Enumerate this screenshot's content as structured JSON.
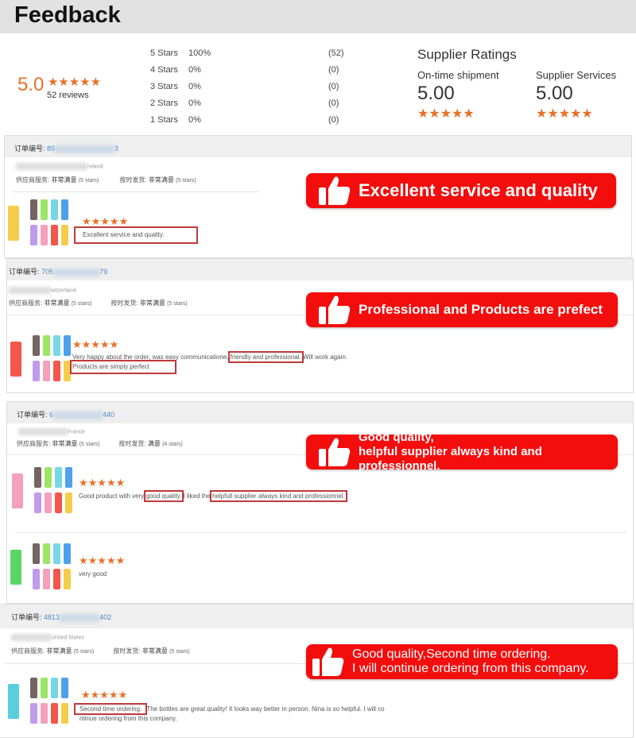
{
  "header": {
    "title": "Feedback"
  },
  "summary": {
    "score": "5.0",
    "reviews": "52 reviews",
    "distribution": [
      {
        "label": "5 Stars",
        "pct": "100%",
        "count": "(52)",
        "fraction": 1
      },
      {
        "label": "4 Stars",
        "pct": "0%",
        "count": "(0)",
        "fraction": 0
      },
      {
        "label": "3 Stars",
        "pct": "0%",
        "count": "(0)",
        "fraction": 0
      },
      {
        "label": "2 Stars",
        "pct": "0%",
        "count": "(0)",
        "fraction": 0
      },
      {
        "label": "1 Stars",
        "pct": "0%",
        "count": "(0)",
        "fraction": 0
      }
    ],
    "supplier_title": "Supplier Ratings",
    "ontime_label": "On-time shipment",
    "ontime_value": "5.00",
    "services_label": "Supplier Services",
    "services_value": "5.00"
  },
  "accent": "#e8702a",
  "callout_color": "#f30d0d",
  "order_label": "订单编号:",
  "service_label": "供应商服务:",
  "shipping_label": "按时发货:",
  "reviews": [
    {
      "order_prefix": "89",
      "order_suffix": "3",
      "country": "reland",
      "service": "非常满意",
      "service_stars": "(5 stars)",
      "shipping": "非常满意",
      "shipping_stars": "(5 stars)",
      "comment": "Excellent service and quality.",
      "callout": [
        "Excellent service and quality"
      ]
    },
    {
      "order_prefix": "705",
      "order_suffix": "79",
      "country": "witzerland",
      "service": "非常满意",
      "service_stars": "(5 stars)",
      "shipping": "非常满意",
      "shipping_stars": "(5 stars)",
      "comment_a": "Very happy about the order, was easy communicatione,",
      "comment_hl1": "friendly and professional.",
      "comment_b": "Will work again.",
      "comment_hl2": "Products are simply perfect",
      "callout": [
        "Professional and Products are prefect"
      ]
    },
    {
      "order_prefix": "6",
      "order_suffix": "440",
      "country": "France",
      "service": "非常满意",
      "service_stars": "(5 stars)",
      "shipping": "满意",
      "shipping_stars": "(4 stars)",
      "comment_a": "Good product with very",
      "comment_hl1": "good quality.",
      "comment_b": "I liked the",
      "comment_hl2": "helpfull supplier always kind and professionnel.",
      "comment2": "very good",
      "callout": [
        "Good quality,",
        "helpful supplier always kind and professionnel."
      ]
    },
    {
      "order_prefix": "4813",
      "order_suffix": "402",
      "country": "United States",
      "service": "非常满意",
      "service_stars": "(5 stars)",
      "shipping": "非常满意",
      "shipping_stars": "(5 stars)",
      "comment_hl1": "Second time ordering.",
      "comment_a": "The bottles are great quality! It looks way better in person. Nina is so helpful. I will co",
      "comment_b": "ntinue ordering from this company.",
      "callout": [
        "Good quality,Second time ordering.",
        "I will continue ordering from this company."
      ]
    }
  ]
}
